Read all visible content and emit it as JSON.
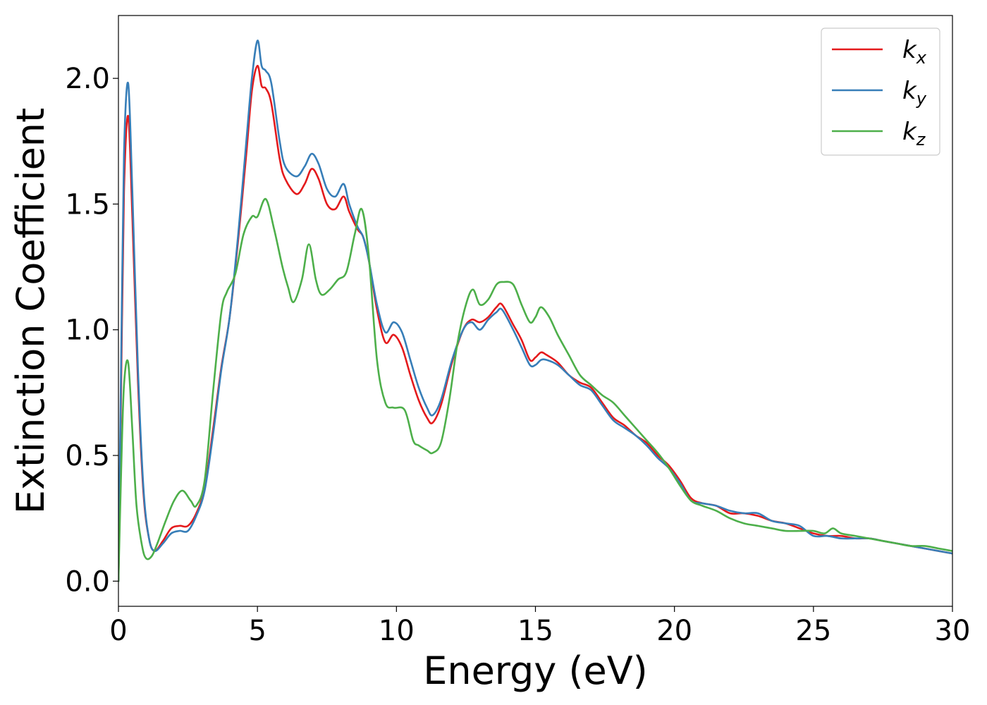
{
  "chart_data": {
    "type": "line",
    "xlabel": "Energy (eV)",
    "ylabel": "Extinction Coefficient",
    "xlim": [
      0,
      30
    ],
    "ylim": [
      -0.1,
      2.25
    ],
    "xticks": [
      0,
      5,
      10,
      15,
      20,
      25,
      30
    ],
    "xtick_labels": [
      "0",
      "5",
      "10",
      "15",
      "20",
      "25",
      "30"
    ],
    "yticks": [
      0.0,
      0.5,
      1.0,
      1.5,
      2.0
    ],
    "ytick_labels": [
      "0.0",
      "0.5",
      "1.0",
      "1.5",
      "2.0"
    ],
    "grid": false,
    "legend_position": "top-right",
    "series": [
      {
        "name": "k",
        "name_sub": "x",
        "color": "#e41a1c",
        "x": [
          0,
          0.1,
          0.2,
          0.35,
          0.5,
          0.7,
          0.9,
          1.1,
          1.3,
          1.6,
          1.9,
          2.2,
          2.5,
          2.8,
          3.1,
          3.4,
          3.7,
          4.0,
          4.3,
          4.6,
          4.8,
          5.0,
          5.15,
          5.3,
          5.5,
          5.8,
          6.0,
          6.4,
          6.7,
          6.95,
          7.2,
          7.5,
          7.8,
          8.1,
          8.3,
          8.6,
          8.8,
          9.0,
          9.3,
          9.6,
          9.9,
          10.2,
          10.5,
          10.8,
          11.1,
          11.3,
          11.6,
          12.0,
          12.4,
          12.7,
          13.0,
          13.3,
          13.6,
          13.8,
          14.2,
          14.5,
          14.8,
          15.0,
          15.2,
          15.4,
          15.8,
          16.2,
          16.6,
          17.0,
          17.4,
          17.8,
          18.2,
          18.6,
          19.0,
          19.4,
          19.8,
          20.2,
          20.6,
          21.0,
          21.5,
          22.0,
          22.5,
          23.0,
          23.5,
          24.0,
          24.5,
          25.0,
          25.5,
          26.0,
          26.5,
          27.0,
          27.5,
          28.0,
          28.5,
          29.0,
          29.5,
          30.0
        ],
        "y": [
          0.0,
          0.8,
          1.55,
          1.85,
          1.45,
          0.8,
          0.35,
          0.17,
          0.12,
          0.16,
          0.21,
          0.22,
          0.22,
          0.27,
          0.37,
          0.6,
          0.85,
          1.05,
          1.35,
          1.7,
          1.95,
          2.05,
          1.97,
          1.96,
          1.9,
          1.68,
          1.6,
          1.54,
          1.58,
          1.64,
          1.6,
          1.5,
          1.48,
          1.53,
          1.47,
          1.4,
          1.37,
          1.28,
          1.08,
          0.95,
          0.98,
          0.93,
          0.82,
          0.72,
          0.65,
          0.63,
          0.7,
          0.87,
          1.0,
          1.04,
          1.03,
          1.05,
          1.09,
          1.1,
          1.02,
          0.96,
          0.88,
          0.89,
          0.91,
          0.9,
          0.87,
          0.82,
          0.79,
          0.77,
          0.71,
          0.65,
          0.62,
          0.58,
          0.55,
          0.5,
          0.46,
          0.4,
          0.33,
          0.31,
          0.3,
          0.27,
          0.27,
          0.26,
          0.24,
          0.23,
          0.21,
          0.19,
          0.18,
          0.18,
          0.17,
          0.17,
          0.16,
          0.15,
          0.14,
          0.13,
          0.12,
          0.11
        ]
      },
      {
        "name": "k",
        "name_sub": "y",
        "color": "#377eb8",
        "x": [
          0,
          0.1,
          0.2,
          0.35,
          0.5,
          0.7,
          0.9,
          1.1,
          1.3,
          1.6,
          1.9,
          2.2,
          2.5,
          2.8,
          3.1,
          3.4,
          3.7,
          4.0,
          4.3,
          4.6,
          4.8,
          5.0,
          5.15,
          5.3,
          5.5,
          5.8,
          6.0,
          6.4,
          6.7,
          6.95,
          7.2,
          7.5,
          7.8,
          8.1,
          8.3,
          8.6,
          8.8,
          9.0,
          9.3,
          9.6,
          9.9,
          10.2,
          10.5,
          10.8,
          11.1,
          11.3,
          11.6,
          12.0,
          12.4,
          12.7,
          13.0,
          13.3,
          13.6,
          13.8,
          14.2,
          14.5,
          14.8,
          15.0,
          15.2,
          15.4,
          15.8,
          16.2,
          16.6,
          17.0,
          17.4,
          17.8,
          18.2,
          18.6,
          19.0,
          19.4,
          19.8,
          20.2,
          20.6,
          21.0,
          21.5,
          22.0,
          22.5,
          23.0,
          23.5,
          24.0,
          24.5,
          25.0,
          25.5,
          26.0,
          26.5,
          27.0,
          27.5,
          28.0,
          28.5,
          29.0,
          29.5,
          30.0
        ],
        "y": [
          0.0,
          0.9,
          1.7,
          1.98,
          1.55,
          0.85,
          0.37,
          0.17,
          0.12,
          0.15,
          0.19,
          0.2,
          0.2,
          0.26,
          0.36,
          0.58,
          0.84,
          1.05,
          1.37,
          1.75,
          2.0,
          2.15,
          2.05,
          2.03,
          1.98,
          1.75,
          1.65,
          1.61,
          1.65,
          1.7,
          1.66,
          1.56,
          1.53,
          1.58,
          1.5,
          1.41,
          1.37,
          1.28,
          1.1,
          0.99,
          1.03,
          0.99,
          0.88,
          0.77,
          0.69,
          0.66,
          0.72,
          0.88,
          1.0,
          1.03,
          1.0,
          1.04,
          1.07,
          1.08,
          1.0,
          0.93,
          0.86,
          0.86,
          0.88,
          0.88,
          0.86,
          0.82,
          0.78,
          0.76,
          0.7,
          0.64,
          0.61,
          0.58,
          0.54,
          0.49,
          0.45,
          0.39,
          0.32,
          0.31,
          0.3,
          0.28,
          0.27,
          0.27,
          0.24,
          0.23,
          0.22,
          0.18,
          0.18,
          0.17,
          0.17,
          0.17,
          0.16,
          0.15,
          0.14,
          0.13,
          0.12,
          0.11
        ]
      },
      {
        "name": "k",
        "name_sub": "z",
        "color": "#4daf4a",
        "x": [
          0,
          0.1,
          0.2,
          0.35,
          0.5,
          0.65,
          0.85,
          1.0,
          1.2,
          1.4,
          1.7,
          2.0,
          2.3,
          2.6,
          2.8,
          3.1,
          3.4,
          3.7,
          3.9,
          4.2,
          4.5,
          4.8,
          5.0,
          5.3,
          5.6,
          5.9,
          6.1,
          6.3,
          6.6,
          6.85,
          7.1,
          7.3,
          7.6,
          7.9,
          8.2,
          8.5,
          8.75,
          9.0,
          9.3,
          9.6,
          9.9,
          10.3,
          10.6,
          10.8,
          11.1,
          11.3,
          11.6,
          11.9,
          12.2,
          12.5,
          12.75,
          13.0,
          13.3,
          13.6,
          13.85,
          14.2,
          14.5,
          14.8,
          15.0,
          15.2,
          15.5,
          15.8,
          16.2,
          16.6,
          17.0,
          17.4,
          17.8,
          18.2,
          18.6,
          19.0,
          19.4,
          19.8,
          20.2,
          20.6,
          21.0,
          21.5,
          22.0,
          22.5,
          23.0,
          23.5,
          24.0,
          24.5,
          25.0,
          25.4,
          25.7,
          26.0,
          26.5,
          27.0,
          27.5,
          28.0,
          28.5,
          29.0,
          29.5,
          30.0
        ],
        "y": [
          0.0,
          0.45,
          0.78,
          0.87,
          0.6,
          0.3,
          0.14,
          0.09,
          0.1,
          0.15,
          0.24,
          0.32,
          0.36,
          0.32,
          0.3,
          0.4,
          0.75,
          1.07,
          1.15,
          1.22,
          1.38,
          1.45,
          1.45,
          1.52,
          1.4,
          1.25,
          1.17,
          1.11,
          1.2,
          1.34,
          1.2,
          1.14,
          1.16,
          1.2,
          1.23,
          1.38,
          1.48,
          1.3,
          0.88,
          0.71,
          0.69,
          0.68,
          0.56,
          0.54,
          0.52,
          0.51,
          0.55,
          0.72,
          0.95,
          1.1,
          1.16,
          1.1,
          1.12,
          1.18,
          1.19,
          1.18,
          1.1,
          1.03,
          1.05,
          1.09,
          1.05,
          0.98,
          0.9,
          0.82,
          0.78,
          0.74,
          0.71,
          0.66,
          0.61,
          0.56,
          0.51,
          0.45,
          0.38,
          0.32,
          0.3,
          0.28,
          0.25,
          0.23,
          0.22,
          0.21,
          0.2,
          0.2,
          0.2,
          0.19,
          0.21,
          0.19,
          0.18,
          0.17,
          0.16,
          0.15,
          0.14,
          0.14,
          0.13,
          0.12
        ]
      }
    ]
  }
}
